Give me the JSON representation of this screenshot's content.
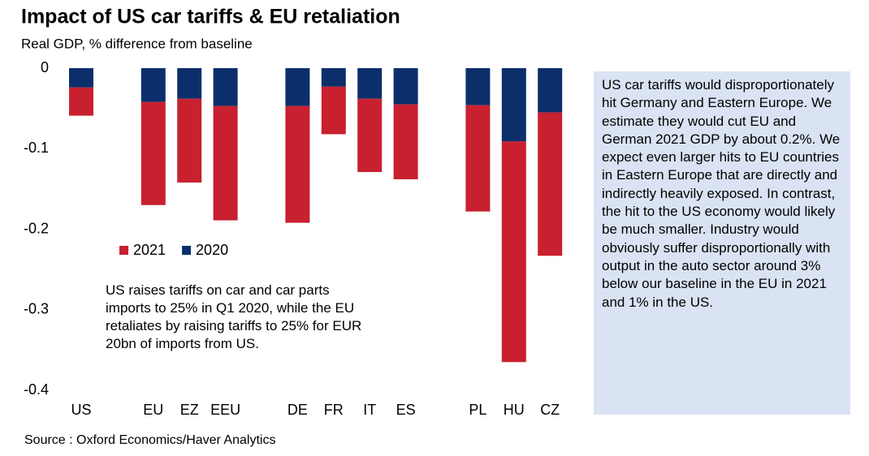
{
  "chart_data": {
    "type": "stacked_bar",
    "title": "Impact of US car tariffs & EU retaliation",
    "subtitle": "Real GDP, % difference from baseline",
    "source": "Source : Oxford Economics/Haver Analytics",
    "annotation": "US raises tariffs on car and car parts imports to 25% in Q1 2020, while the EU retaliates by raising tariffs to 25% for EUR 20bn of imports from US.",
    "side_text": "US car tariffs would disproportionately hit Germany and Eastern Europe. We estimate they would cut EU and German 2021 GDP by about 0.2%. We expect even larger hits to EU countries in Eastern Europe that are directly and indirectly heavily exposed. In contrast, the hit to the US economy would likely be much smaller. Industry would obviously suffer disproportionally with output in the auto sector around 3% below our baseline in the EU in 2021 and 1% in the US.",
    "categories": [
      "US",
      null,
      "EU",
      "EZ",
      "EEU",
      null,
      "DE",
      "FR",
      "IT",
      "ES",
      null,
      "PL",
      "HU",
      "CZ"
    ],
    "series": [
      {
        "name": "2021",
        "color": "#c8202f",
        "values": [
          -0.035,
          null,
          -0.128,
          -0.104,
          -0.142,
          null,
          -0.145,
          -0.059,
          -0.091,
          -0.093,
          null,
          -0.132,
          -0.274,
          -0.178
        ]
      },
      {
        "name": "2020",
        "color": "#0c2f6b",
        "values": [
          -0.024,
          null,
          -0.042,
          -0.038,
          -0.047,
          null,
          -0.047,
          -0.023,
          -0.038,
          -0.045,
          null,
          -0.046,
          -0.091,
          -0.055
        ]
      }
    ],
    "ylim": [
      -0.4,
      0
    ],
    "yticks": [
      0,
      -0.1,
      -0.2,
      -0.3,
      -0.4
    ],
    "grid": false
  }
}
